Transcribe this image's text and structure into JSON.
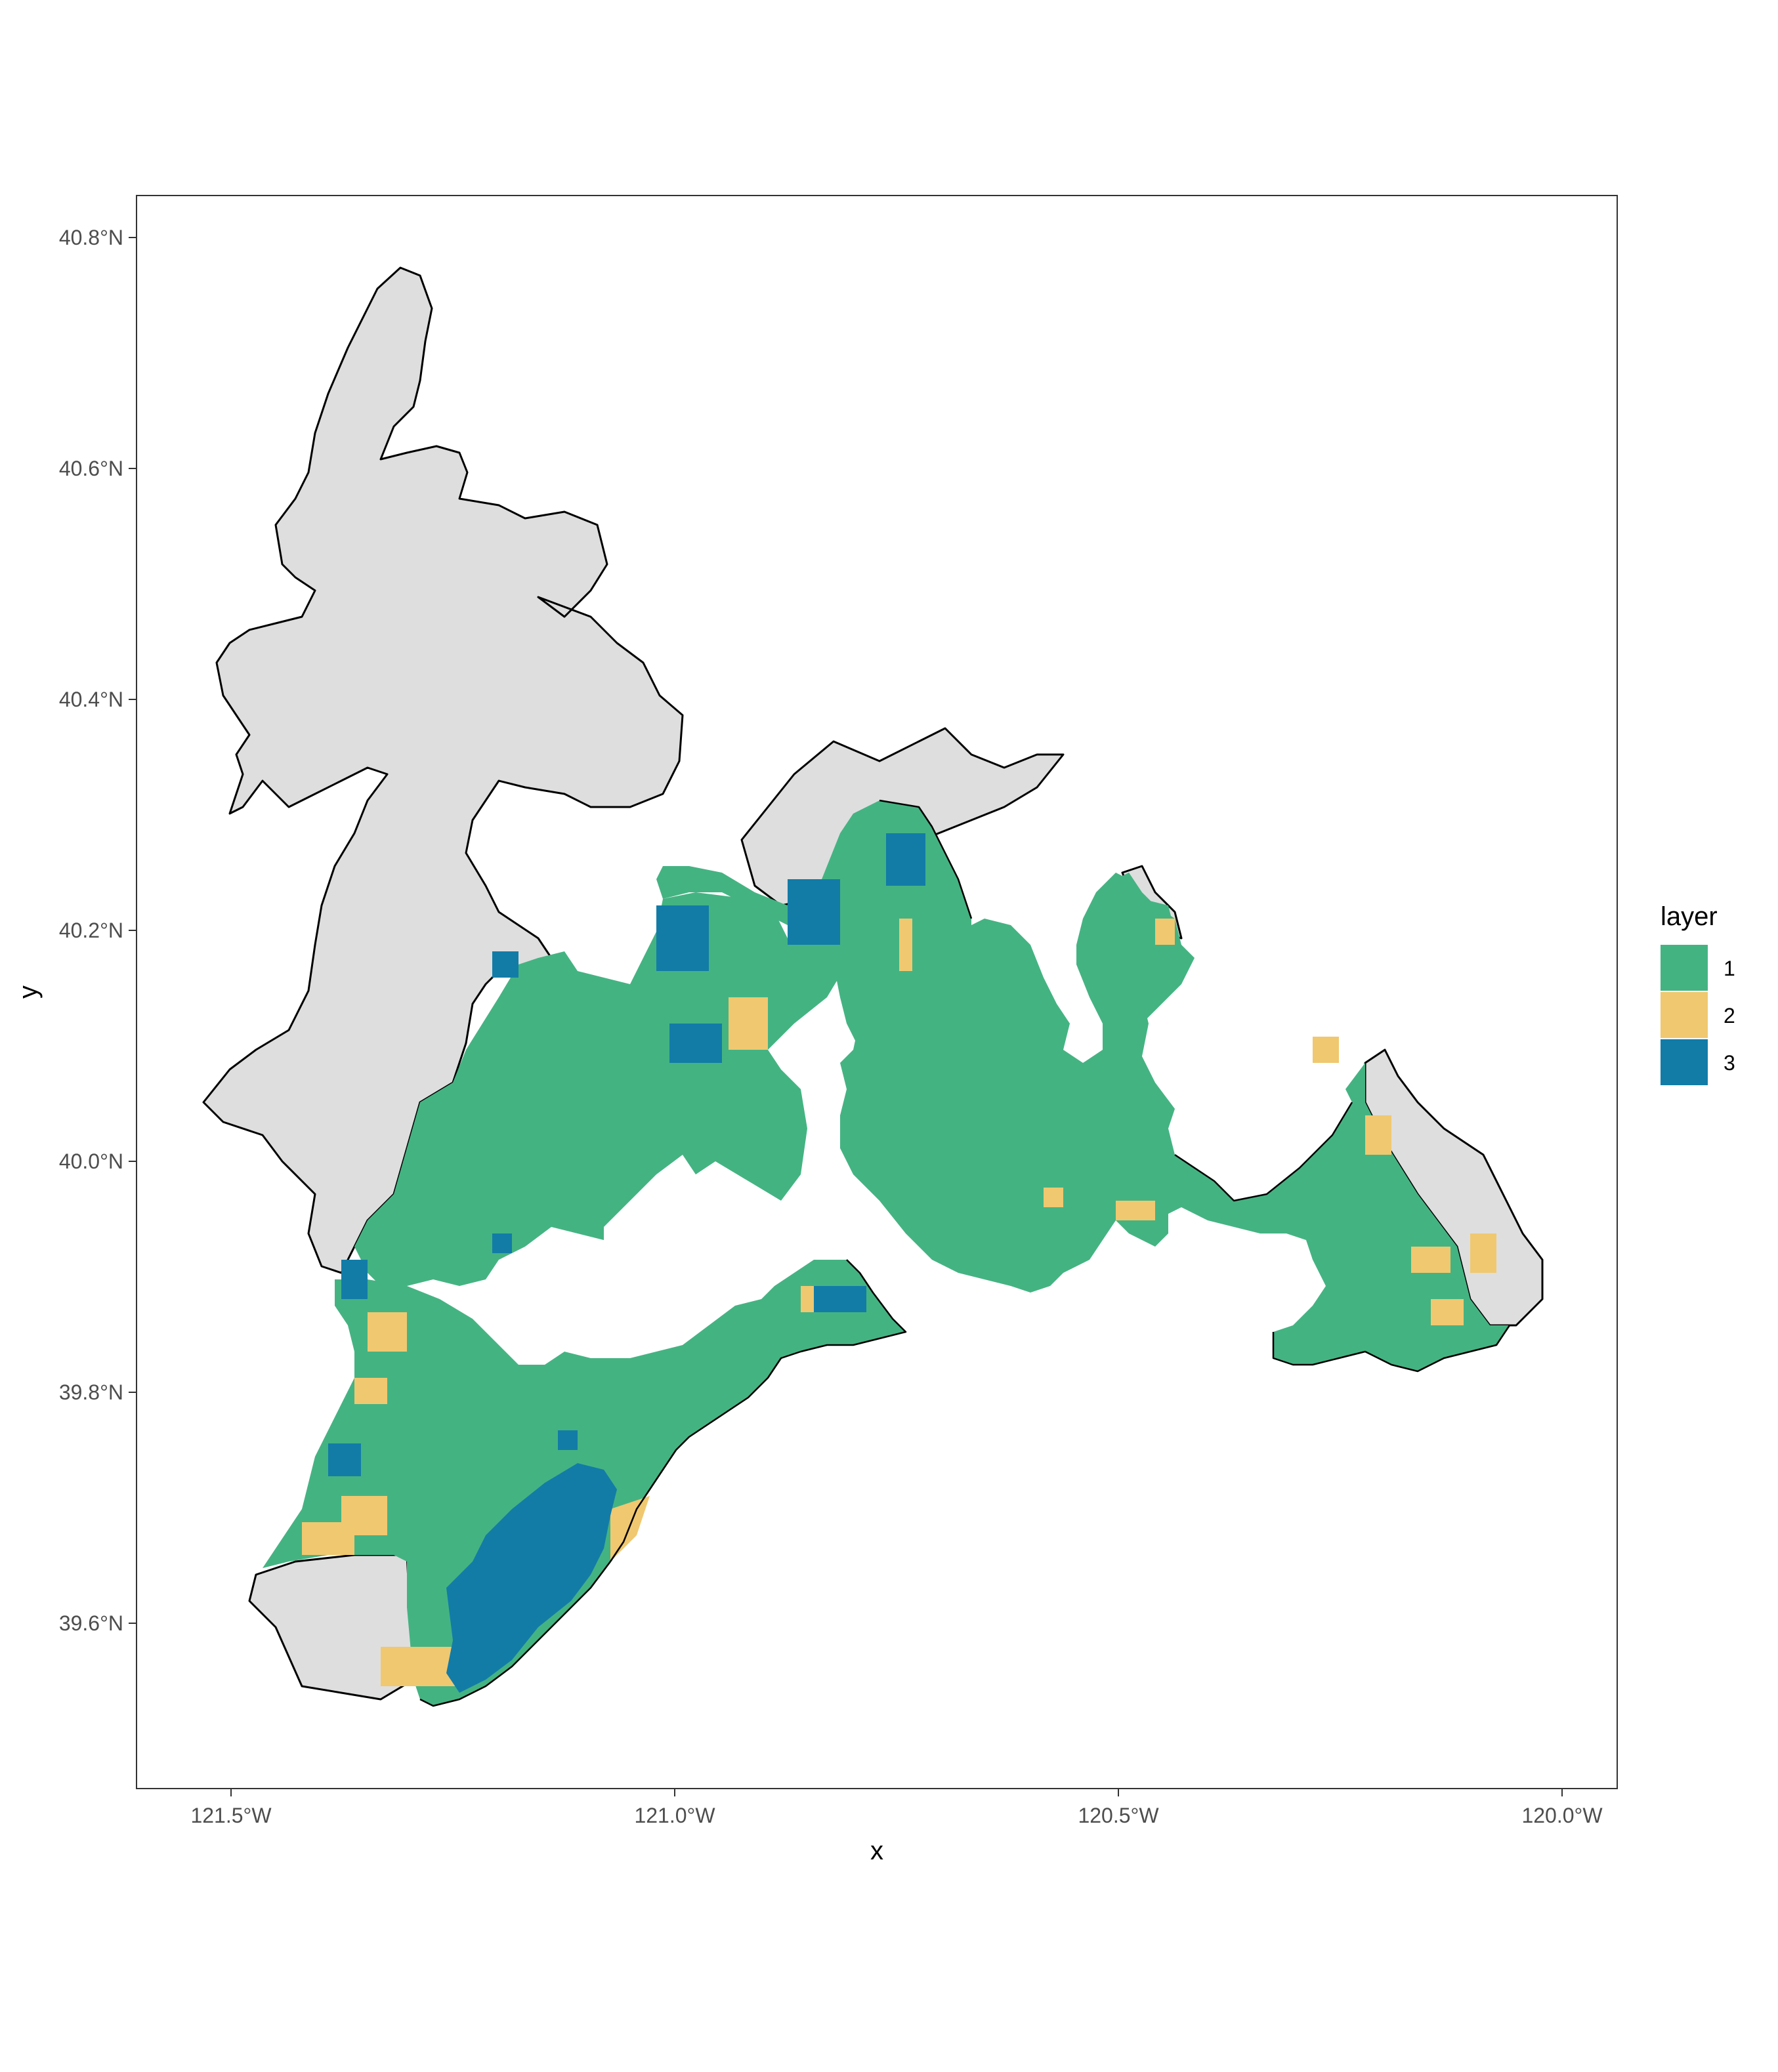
{
  "chart_data": {
    "type": "map",
    "xlabel": "x",
    "ylabel": "y",
    "xlim": [
      -121.6,
      -119.94
    ],
    "ylim": [
      39.46,
      40.84
    ],
    "x_ticks": [
      -121.5,
      -121.0,
      -120.5,
      -120.0
    ],
    "x_tick_labels": [
      "121.5°W",
      "121.0°W",
      "120.5°W",
      "120.0°W"
    ],
    "y_ticks": [
      39.6,
      39.8,
      40.0,
      40.2,
      40.4,
      40.6,
      40.8
    ],
    "y_tick_labels": [
      "39.6°N",
      "39.8°N",
      "40.0°N",
      "40.2°N",
      "40.4°N",
      "40.6°N",
      "40.8°N"
    ],
    "grid": false,
    "legend": {
      "title": "layer",
      "position": "right",
      "entries": [
        {
          "label": "1",
          "color": "#44b382"
        },
        {
          "label": "2",
          "color": "#f0c870"
        },
        {
          "label": "3",
          "color": "#127ca7"
        }
      ]
    },
    "background_fill": "#dedede",
    "outline_color": "#000000"
  }
}
